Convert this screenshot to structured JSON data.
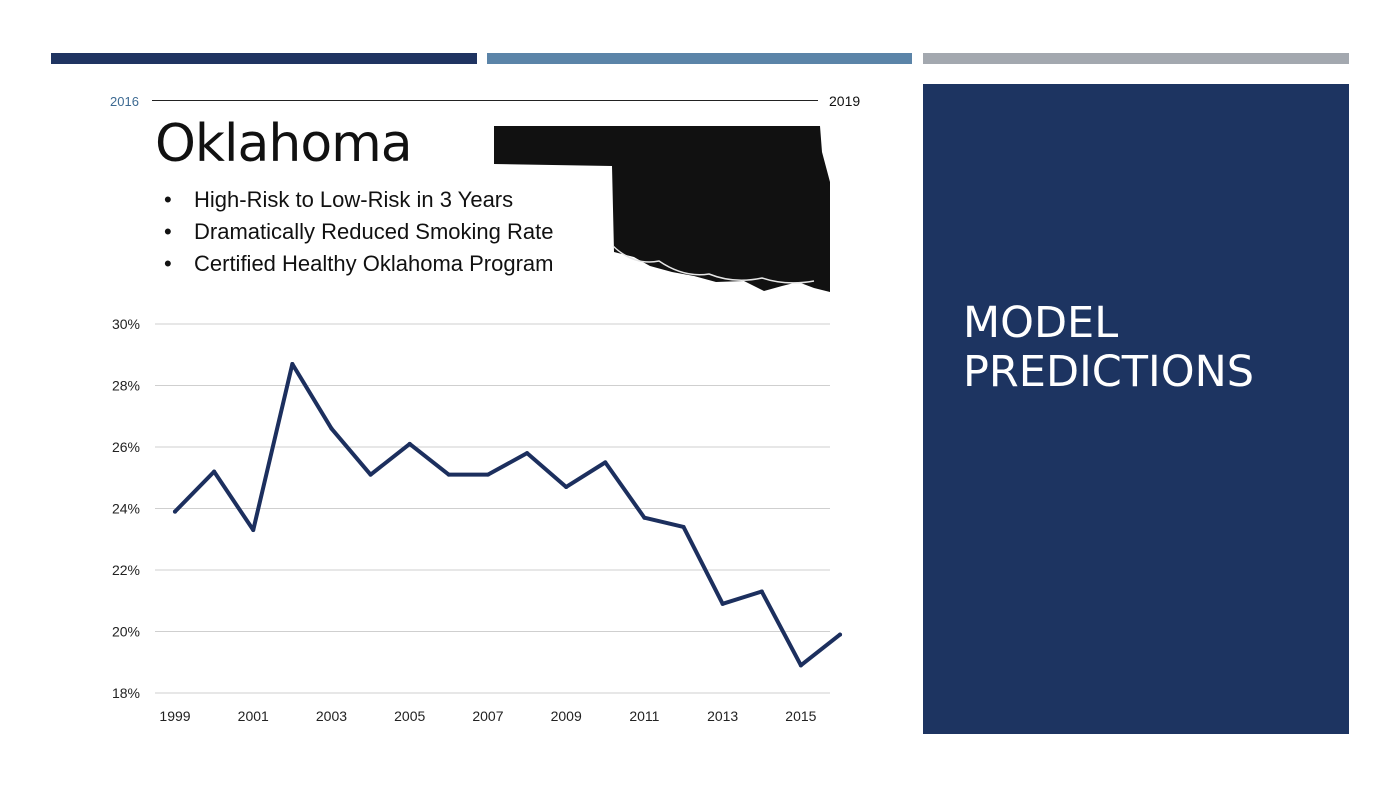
{
  "timeline": {
    "start": "2016",
    "end": "2019"
  },
  "state_name": "Oklahoma",
  "bullets": [
    "High-Risk to Low-Risk in 3 Years",
    "Dramatically Reduced Smoking Rate",
    "Certified Healthy Oklahoma Program"
  ],
  "section_title": "MODEL PREDICTIONS",
  "colors": {
    "accent_dark": "#1f3461",
    "accent_mid": "#5b84a8",
    "accent_gray": "#a3a8af",
    "panel": "#1d3461",
    "line": "#1c2f5e"
  },
  "chart_data": {
    "type": "line",
    "title": "",
    "xlabel": "",
    "ylabel": "",
    "x": [
      1999,
      2000,
      2001,
      2002,
      2003,
      2004,
      2005,
      2006,
      2007,
      2008,
      2009,
      2010,
      2011,
      2012,
      2013,
      2014,
      2015,
      2016
    ],
    "series": [
      {
        "values": [
          23.9,
          25.2,
          23.3,
          28.7,
          26.6,
          25.1,
          26.1,
          25.1,
          25.1,
          25.8,
          24.7,
          25.5,
          23.7,
          23.4,
          20.9,
          21.3,
          18.9,
          19.9
        ]
      }
    ],
    "xticks": [
      "1999",
      "2001",
      "2003",
      "2005",
      "2007",
      "2009",
      "2011",
      "2013",
      "2015"
    ],
    "yticks": [
      "18%",
      "20%",
      "22%",
      "24%",
      "26%",
      "28%",
      "30%"
    ],
    "ylim": [
      18,
      30
    ],
    "grid": true
  }
}
